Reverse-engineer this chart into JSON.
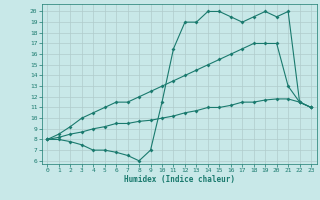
{
  "xlabel": "Humidex (Indice chaleur)",
  "bg_color": "#c8e8e8",
  "line_color": "#1a7a6e",
  "grid_color": "#b0cccc",
  "xlim": [
    -0.5,
    23.5
  ],
  "ylim": [
    5.7,
    20.7
  ],
  "yticks": [
    6,
    7,
    8,
    9,
    10,
    11,
    12,
    13,
    14,
    15,
    16,
    17,
    18,
    19,
    20
  ],
  "xticks": [
    0,
    1,
    2,
    3,
    4,
    5,
    6,
    7,
    8,
    9,
    10,
    11,
    12,
    13,
    14,
    15,
    16,
    17,
    18,
    19,
    20,
    21,
    22,
    23
  ],
  "line1_x": [
    0,
    1,
    2,
    3,
    4,
    5,
    6,
    7,
    8,
    9,
    10,
    11,
    12,
    13,
    14,
    15,
    16,
    17,
    18,
    19,
    20,
    21,
    22,
    23
  ],
  "line1_y": [
    8.0,
    8.2,
    8.5,
    8.7,
    9.0,
    9.2,
    9.5,
    9.5,
    9.7,
    9.8,
    10.0,
    10.2,
    10.5,
    10.7,
    11.0,
    11.0,
    11.2,
    11.5,
    11.5,
    11.7,
    11.8,
    11.8,
    11.5,
    11.0
  ],
  "line2_x": [
    0,
    1,
    2,
    3,
    4,
    5,
    6,
    7,
    8,
    9,
    10,
    11,
    12,
    13,
    14,
    15,
    16,
    17,
    18,
    19,
    20,
    21,
    22,
    23
  ],
  "line2_y": [
    8.0,
    8.5,
    9.2,
    10.0,
    10.5,
    11.0,
    11.5,
    11.5,
    12.0,
    12.5,
    13.0,
    13.5,
    14.0,
    14.5,
    15.0,
    15.5,
    16.0,
    16.5,
    17.0,
    17.0,
    17.0,
    13.0,
    11.5,
    11.0
  ],
  "line3_x": [
    0,
    1,
    2,
    3,
    4,
    5,
    6,
    7,
    8,
    9,
    10,
    11,
    12,
    13,
    14,
    15,
    16,
    17,
    18,
    19,
    20,
    21,
    22,
    23
  ],
  "line3_y": [
    8.0,
    8.0,
    7.8,
    7.5,
    7.0,
    7.0,
    6.8,
    6.5,
    6.0,
    7.0,
    11.5,
    16.5,
    19.0,
    19.0,
    20.0,
    20.0,
    19.5,
    19.0,
    19.5,
    20.0,
    19.5,
    20.0,
    11.5,
    11.0
  ]
}
